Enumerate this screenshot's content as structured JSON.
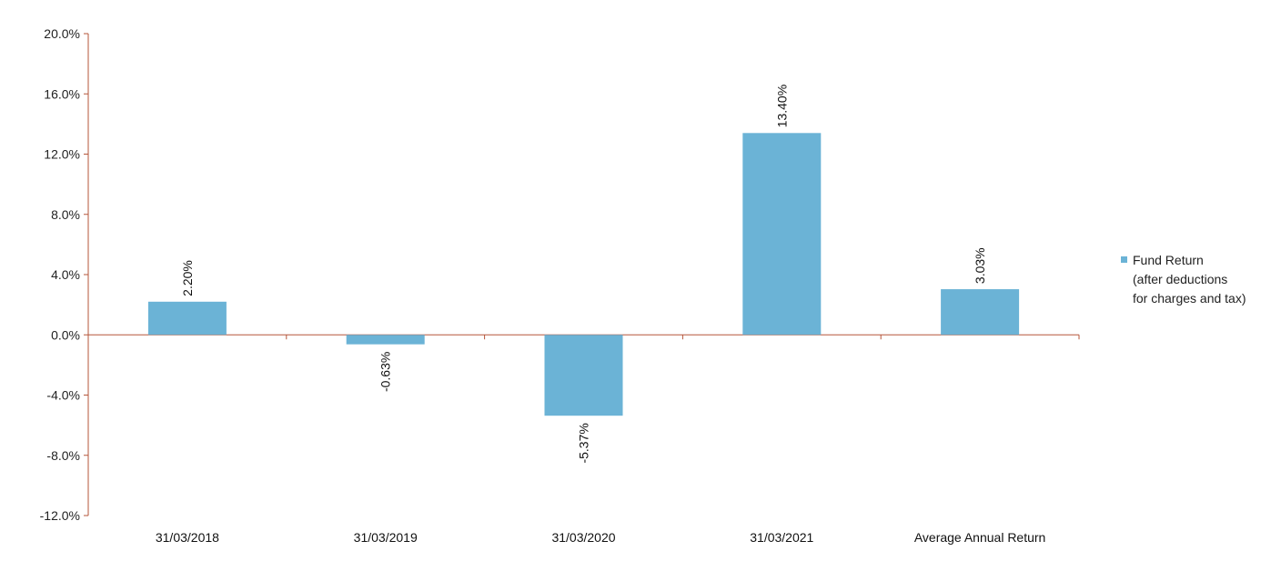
{
  "chart_data": {
    "type": "bar",
    "categories": [
      "31/03/2018",
      "31/03/2019",
      "31/03/2020",
      "31/03/2021",
      "Average Annual Return"
    ],
    "series": [
      {
        "name": "Fund Return (after deductions for charges and tax)",
        "name_lines": [
          "Fund Return",
          "(after deductions",
          "for charges and tax)"
        ],
        "values": [
          2.2,
          -0.63,
          -5.37,
          13.4,
          3.03
        ],
        "labels": [
          "2.20%",
          "-0.63%",
          "-5.37%",
          "13.40%",
          "3.03%"
        ],
        "color": "#6bb3d6"
      }
    ],
    "yticks": [
      20,
      16,
      12,
      8,
      4,
      0,
      -4,
      -8,
      -12
    ],
    "ytick_labels": [
      "20.0%",
      "16.0%",
      "12.0%",
      "8.0%",
      "4.0%",
      "0.0%",
      "-4.0%",
      "-8.0%",
      "-12.0%"
    ],
    "ylim": [
      -12,
      20
    ],
    "title": "",
    "xlabel": "",
    "ylabel": "",
    "grid": false,
    "legend": "right",
    "zero_line_color": "#b5563a",
    "axis_color": "#b5563a"
  }
}
